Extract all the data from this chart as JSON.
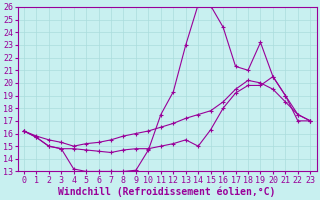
{
  "title": "",
  "xlabel": "Windchill (Refroidissement éolien,°C)",
  "ylabel": "",
  "bg_color": "#c8f0f0",
  "line_color": "#990099",
  "grid_color": "#aadddd",
  "xlim": [
    -0.5,
    23.5
  ],
  "ylim": [
    13,
    26
  ],
  "yticks": [
    13,
    14,
    15,
    16,
    17,
    18,
    19,
    20,
    21,
    22,
    23,
    24,
    25,
    26
  ],
  "xticks": [
    0,
    1,
    2,
    3,
    4,
    5,
    6,
    7,
    8,
    9,
    10,
    11,
    12,
    13,
    14,
    15,
    16,
    17,
    18,
    19,
    20,
    21,
    22,
    23
  ],
  "line1_x": [
    0,
    1,
    2,
    3,
    4,
    5,
    6,
    7,
    8,
    9,
    10,
    11,
    12,
    13,
    14,
    15,
    16,
    17,
    18,
    19,
    20,
    21,
    22,
    23
  ],
  "line1_y": [
    16.2,
    15.7,
    15.0,
    14.8,
    13.2,
    13.0,
    13.0,
    13.0,
    13.0,
    13.1,
    14.7,
    17.5,
    19.3,
    23.0,
    26.2,
    26.1,
    24.4,
    21.3,
    21.0,
    23.2,
    20.5,
    19.0,
    17.0,
    17.0
  ],
  "line2_x": [
    0,
    1,
    2,
    3,
    4,
    5,
    6,
    7,
    8,
    9,
    10,
    11,
    12,
    13,
    14,
    15,
    16,
    17,
    18,
    19,
    20,
    21,
    22,
    23
  ],
  "line2_y": [
    16.2,
    15.7,
    15.0,
    14.8,
    14.8,
    14.7,
    14.6,
    14.5,
    14.7,
    14.8,
    14.8,
    15.0,
    15.2,
    15.5,
    15.0,
    16.3,
    18.0,
    19.2,
    19.8,
    19.8,
    20.5,
    19.0,
    17.5,
    17.0
  ],
  "line3_x": [
    0,
    1,
    2,
    3,
    4,
    5,
    6,
    7,
    8,
    9,
    10,
    11,
    12,
    13,
    14,
    15,
    16,
    17,
    18,
    19,
    20,
    21,
    22,
    23
  ],
  "line3_y": [
    16.2,
    15.8,
    15.5,
    15.3,
    15.0,
    15.2,
    15.3,
    15.5,
    15.8,
    16.0,
    16.2,
    16.5,
    16.8,
    17.2,
    17.5,
    17.8,
    18.5,
    19.5,
    20.2,
    20.0,
    19.5,
    18.5,
    17.5,
    17.0
  ],
  "font_family": "monospace",
  "tick_fontsize": 6.0,
  "label_fontsize": 7.0
}
